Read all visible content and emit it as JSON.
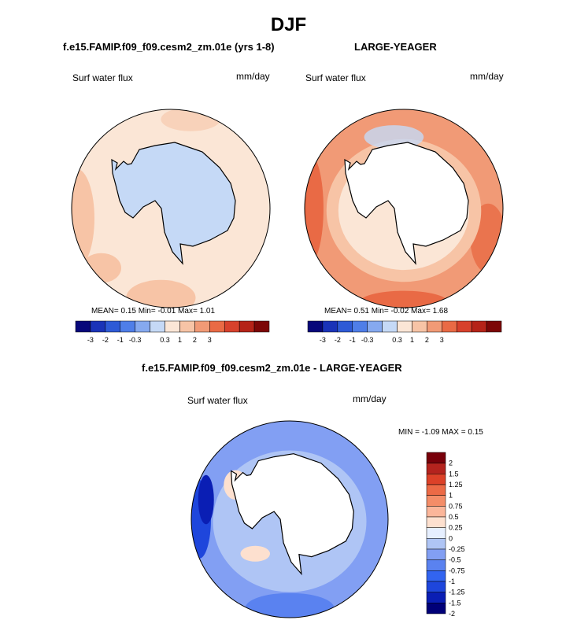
{
  "main_title": "DJF",
  "colors": {
    "abs_scale": [
      "#08087a",
      "#1a33b8",
      "#2e5ad6",
      "#4f7ee8",
      "#86a9ef",
      "#c5d9f6",
      "#fbe6d6",
      "#f7c4a6",
      "#f19a76",
      "#e96a45",
      "#d7412c",
      "#b52318",
      "#7c0707"
    ],
    "diff_scale": [
      "#000078",
      "#0a1eb4",
      "#1e46dc",
      "#3264f0",
      "#5a82f0",
      "#829ff3",
      "#afc5f5",
      "#e6efff",
      "#fde0cf",
      "#fbb69a",
      "#f48d68",
      "#ec6a46",
      "#dc4128",
      "#b4231e",
      "#78000a"
    ],
    "land": "#ffffff",
    "coast": "#000000"
  },
  "chart_data": [
    {
      "type": "heatmap",
      "projection": "south-polar-stereographic",
      "title": "f.e15.FAMIP.f09_f09.cesm2_zm.01e (yrs 1-8)",
      "variable": "Surf water flux",
      "units": "mm/day",
      "stats_text": "MEAN=  0.15  Min=  -0.01  Max=   1.01",
      "mean": 0.15,
      "min": -0.01,
      "max": 1.01,
      "colorbar": {
        "tick_labels": [
          "-3",
          "-2",
          "-1",
          "-0.3",
          "0.3",
          "1",
          "2",
          "3"
        ],
        "orientation": "horizontal"
      },
      "field_description": "mostly 0.3 to 1 over the Southern Ocean with 1 to 2 patches in the South Pacific/Atlantic sector; Antarctica -0.3 to 0.3"
    },
    {
      "type": "heatmap",
      "projection": "south-polar-stereographic",
      "title": "LARGE-YEAGER",
      "variable": "Surf water flux",
      "units": "mm/day",
      "stats_text": "MEAN=  0.51  Min=  -0.02  Max=   1.68",
      "mean": 0.51,
      "min": -0.02,
      "max": 1.68,
      "colorbar": {
        "tick_labels": [
          "-3",
          "-2",
          "-1",
          "-0.3",
          "0.3",
          "1",
          "2",
          "3"
        ],
        "orientation": "horizontal"
      },
      "field_description": "1 to 2 over most of the ocean, 2 to 3 along the South Pacific edge, 0.3 to 1 near the ice edge; land masked"
    },
    {
      "type": "heatmap",
      "projection": "south-polar-stereographic",
      "title": "f.e15.FAMIP.f09_f09.cesm2_zm.01e - LARGE-YEAGER",
      "variable": "Surf water flux",
      "units": "mm/day",
      "stats_text": "MIN =  -1.09 MAX =   0.15",
      "min": -1.09,
      "max": 0.15,
      "colorbar": {
        "tick_labels": [
          "2",
          "1.5",
          "1.25",
          "1",
          "0.75",
          "0.5",
          "0.25",
          "0",
          "-0.25",
          "-0.5",
          "-0.75",
          "-1",
          "-1.25",
          "-1.5",
          "-2"
        ],
        "orientation": "vertical"
      },
      "field_description": "mostly -0.75 to -0.25 over the ocean, -1.25 to -0.75 in the South Pacific sector, 0 to 0.25 near the Antarctic Peninsula and Weddell coast"
    }
  ]
}
